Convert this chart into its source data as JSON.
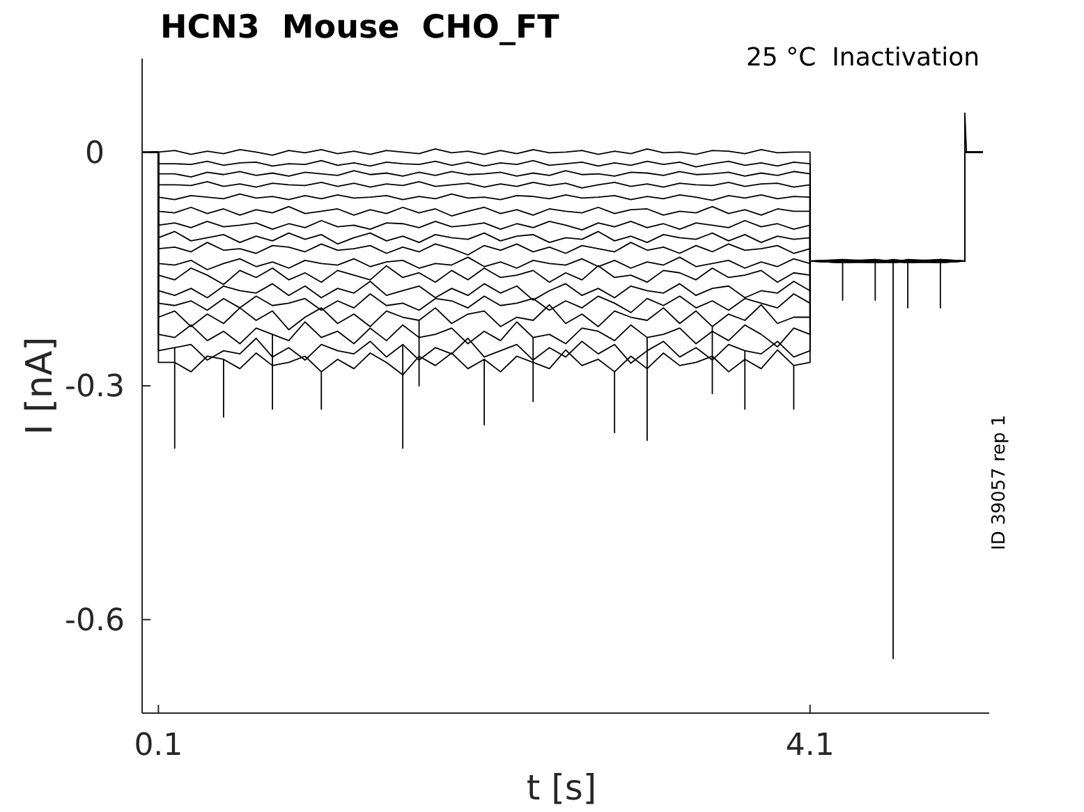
{
  "chart_data": {
    "type": "line",
    "title": "HCN3  Mouse  CHO_FT",
    "subtitle": "25 °C  Inactivation",
    "xlabel": "t [s]",
    "ylabel": "I [nA]",
    "annotations": [
      "ID 39057 rep 1"
    ],
    "xlim": [
      0,
      5.2
    ],
    "ylim": [
      -0.72,
      0.12
    ],
    "xticks": [
      0.1,
      4.1
    ],
    "yticks": [
      0,
      -0.3,
      -0.6
    ],
    "x": [
      0,
      0.1,
      0.1,
      0.2,
      0.3,
      0.4,
      0.5,
      0.6,
      0.7,
      0.8,
      0.9,
      1.0,
      1.1,
      1.2,
      1.3,
      1.4,
      1.5,
      1.6,
      1.7,
      1.8,
      1.9,
      2.0,
      2.1,
      2.2,
      2.3,
      2.4,
      2.5,
      2.6,
      2.7,
      2.8,
      2.9,
      3.0,
      3.1,
      3.2,
      3.3,
      3.4,
      3.5,
      3.6,
      3.7,
      3.8,
      3.9,
      4.0,
      4.1,
      4.1,
      4.3,
      4.5,
      4.61,
      4.7,
      4.9,
      5.05,
      5.05,
      5.06,
      5.16
    ],
    "series": [
      {
        "color": "#000000",
        "values": [
          0,
          0,
          0,
          0.002,
          -0.003,
          0.001,
          -0.002,
          0.003,
          0,
          -0.004,
          0.002,
          -0.001,
          0.003,
          -0.002,
          0.001,
          -0.003,
          0.002,
          0,
          -0.002,
          0.004,
          -0.001,
          0.001,
          -0.003,
          0.002,
          -0.002,
          0.003,
          -0.001,
          0,
          0.002,
          -0.003,
          0.001,
          -0.002,
          0.004,
          -0.001,
          0,
          -0.003,
          0.002,
          0.001,
          -0.002,
          0.003,
          -0.001,
          0,
          0,
          -0.14,
          -0.139,
          -0.141,
          -0.14,
          -0.142,
          -0.138,
          -0.14,
          0,
          0,
          0
        ]
      },
      {
        "color": "#000000",
        "values": [
          0,
          0,
          -0.015,
          -0.015,
          -0.016,
          -0.012,
          -0.017,
          -0.014,
          -0.013,
          -0.018,
          -0.015,
          -0.016,
          -0.011,
          -0.017,
          -0.014,
          -0.018,
          -0.013,
          -0.015,
          -0.016,
          -0.012,
          -0.017,
          -0.013,
          -0.018,
          -0.014,
          -0.016,
          -0.011,
          -0.017,
          -0.015,
          -0.013,
          -0.018,
          -0.014,
          -0.017,
          -0.012,
          -0.016,
          -0.013,
          -0.019,
          -0.015,
          -0.012,
          -0.017,
          -0.014,
          -0.018,
          -0.013,
          -0.015,
          -0.14,
          -0.141,
          -0.138,
          -0.142,
          -0.14,
          -0.141,
          -0.14,
          0,
          0,
          0
        ]
      },
      {
        "color": "#000000",
        "values": [
          0,
          0,
          -0.028,
          -0.028,
          -0.032,
          -0.026,
          -0.029,
          -0.025,
          -0.03,
          -0.027,
          -0.031,
          -0.026,
          -0.028,
          -0.03,
          -0.024,
          -0.029,
          -0.027,
          -0.031,
          -0.026,
          -0.03,
          -0.025,
          -0.029,
          -0.028,
          -0.026,
          -0.031,
          -0.027,
          -0.03,
          -0.024,
          -0.029,
          -0.028,
          -0.031,
          -0.026,
          -0.027,
          -0.03,
          -0.025,
          -0.029,
          -0.028,
          -0.026,
          -0.031,
          -0.027,
          -0.03,
          -0.025,
          -0.028,
          -0.14,
          -0.14,
          -0.142,
          -0.139,
          -0.141,
          -0.14,
          -0.14,
          0,
          0,
          0
        ]
      },
      {
        "color": "#000000",
        "values": [
          0,
          0,
          -0.042,
          -0.042,
          -0.043,
          -0.038,
          -0.044,
          -0.041,
          -0.045,
          -0.04,
          -0.042,
          -0.043,
          -0.039,
          -0.044,
          -0.04,
          -0.045,
          -0.041,
          -0.043,
          -0.038,
          -0.044,
          -0.042,
          -0.04,
          -0.045,
          -0.041,
          -0.044,
          -0.039,
          -0.043,
          -0.04,
          -0.046,
          -0.042,
          -0.039,
          -0.044,
          -0.041,
          -0.045,
          -0.04,
          -0.042,
          -0.043,
          -0.039,
          -0.044,
          -0.041,
          -0.04,
          -0.045,
          -0.042,
          -0.14,
          -0.138,
          -0.14,
          -0.141,
          -0.139,
          -0.142,
          -0.14,
          0,
          0,
          0
        ]
      },
      {
        "color": "#000000",
        "values": [
          0,
          0,
          -0.058,
          -0.061,
          -0.056,
          -0.058,
          -0.06,
          -0.054,
          -0.059,
          -0.057,
          -0.061,
          -0.056,
          -0.06,
          -0.055,
          -0.059,
          -0.058,
          -0.056,
          -0.061,
          -0.057,
          -0.06,
          -0.054,
          -0.059,
          -0.058,
          -0.061,
          -0.056,
          -0.057,
          -0.06,
          -0.055,
          -0.059,
          -0.058,
          -0.056,
          -0.061,
          -0.057,
          -0.06,
          -0.055,
          -0.058,
          -0.062,
          -0.056,
          -0.059,
          -0.055,
          -0.06,
          -0.057,
          -0.058,
          -0.14,
          -0.142,
          -0.139,
          -0.14,
          -0.141,
          -0.139,
          -0.14,
          0,
          0,
          0
        ]
      },
      {
        "color": "#000000",
        "values": [
          0,
          0,
          -0.076,
          -0.078,
          -0.071,
          -0.079,
          -0.073,
          -0.081,
          -0.074,
          -0.078,
          -0.07,
          -0.079,
          -0.076,
          -0.073,
          -0.081,
          -0.074,
          -0.079,
          -0.071,
          -0.078,
          -0.073,
          -0.082,
          -0.076,
          -0.071,
          -0.079,
          -0.074,
          -0.081,
          -0.073,
          -0.076,
          -0.078,
          -0.071,
          -0.079,
          -0.074,
          -0.073,
          -0.081,
          -0.076,
          -0.078,
          -0.07,
          -0.079,
          -0.074,
          -0.081,
          -0.073,
          -0.076,
          -0.076,
          -0.14,
          -0.14,
          -0.141,
          -0.138,
          -0.14,
          -0.141,
          -0.14,
          0.05,
          0,
          0
        ]
      },
      {
        "color": "#000000",
        "values": [
          0,
          0,
          -0.094,
          -0.091,
          -0.097,
          -0.089,
          -0.096,
          -0.094,
          -0.091,
          -0.099,
          -0.092,
          -0.097,
          -0.088,
          -0.096,
          -0.094,
          -0.099,
          -0.091,
          -0.092,
          -0.097,
          -0.089,
          -0.096,
          -0.094,
          -0.091,
          -0.099,
          -0.092,
          -0.097,
          -0.089,
          -0.094,
          -0.1,
          -0.091,
          -0.096,
          -0.089,
          -0.097,
          -0.092,
          -0.099,
          -0.091,
          -0.094,
          -0.097,
          -0.088,
          -0.096,
          -0.092,
          -0.099,
          -0.094,
          -0.14,
          -0.139,
          -0.142,
          -0.141,
          -0.138,
          -0.14,
          -0.14,
          0,
          0,
          0
        ]
      },
      {
        "color": "#000000",
        "values": [
          0,
          0,
          -0.11,
          -0.102,
          -0.114,
          -0.11,
          -0.106,
          -0.116,
          -0.108,
          -0.114,
          -0.104,
          -0.112,
          -0.106,
          -0.118,
          -0.11,
          -0.104,
          -0.114,
          -0.108,
          -0.116,
          -0.106,
          -0.11,
          -0.112,
          -0.104,
          -0.114,
          -0.108,
          -0.106,
          -0.116,
          -0.11,
          -0.112,
          -0.102,
          -0.114,
          -0.108,
          -0.116,
          -0.106,
          -0.11,
          -0.112,
          -0.104,
          -0.114,
          -0.106,
          -0.116,
          -0.108,
          -0.112,
          -0.11,
          -0.14,
          -0.141,
          -0.14,
          -0.139,
          -0.142,
          -0.141,
          -0.14,
          0,
          0,
          0
        ]
      },
      {
        "color": "#000000",
        "values": [
          0,
          0,
          -0.124,
          -0.122,
          -0.128,
          -0.116,
          -0.126,
          -0.124,
          -0.13,
          -0.12,
          -0.122,
          -0.128,
          -0.118,
          -0.126,
          -0.124,
          -0.12,
          -0.13,
          -0.122,
          -0.128,
          -0.118,
          -0.124,
          -0.132,
          -0.12,
          -0.126,
          -0.118,
          -0.128,
          -0.122,
          -0.13,
          -0.12,
          -0.124,
          -0.128,
          -0.116,
          -0.126,
          -0.122,
          -0.13,
          -0.12,
          -0.128,
          -0.118,
          -0.126,
          -0.124,
          -0.12,
          -0.13,
          -0.124,
          -0.14,
          -0.14,
          -0.139,
          -0.142,
          -0.14,
          -0.138,
          -0.14,
          0,
          0,
          0
        ]
      },
      {
        "color": "#000000",
        "values": [
          0,
          0,
          -0.143,
          -0.145,
          -0.139,
          -0.151,
          -0.143,
          -0.137,
          -0.147,
          -0.141,
          -0.149,
          -0.139,
          -0.143,
          -0.145,
          -0.137,
          -0.147,
          -0.141,
          -0.139,
          -0.149,
          -0.143,
          -0.145,
          -0.135,
          -0.147,
          -0.141,
          -0.149,
          -0.139,
          -0.143,
          -0.145,
          -0.137,
          -0.147,
          -0.139,
          -0.149,
          -0.141,
          -0.145,
          -0.135,
          -0.147,
          -0.143,
          -0.139,
          -0.149,
          -0.141,
          -0.147,
          -0.137,
          -0.143,
          -0.14,
          -0.142,
          -0.141,
          -0.14,
          -0.139,
          -0.14,
          -0.14,
          0,
          0,
          0
        ]
      },
      {
        "color": "#000000",
        "x": [
          0,
          0.1,
          0.1,
          0.2,
          0.3,
          0.4,
          0.5,
          0.6,
          0.7,
          0.8,
          0.9,
          1.0,
          1.1,
          1.2,
          1.3,
          1.4,
          1.5,
          1.6,
          1.7,
          1.8,
          1.9,
          2.0,
          2.1,
          2.2,
          2.3,
          2.4,
          2.5,
          2.6,
          2.7,
          2.8,
          2.9,
          3.0,
          3.1,
          3.2,
          3.3,
          3.4,
          3.5,
          3.6,
          3.7,
          3.8,
          3.9,
          4.0,
          4.1,
          4.1,
          4.3,
          4.3,
          4.3,
          4.5,
          4.61,
          4.7,
          4.9,
          5.05,
          5.05,
          5.06,
          5.16
        ],
        "values": [
          0,
          0,
          -0.158,
          -0.164,
          -0.149,
          -0.158,
          -0.17,
          -0.152,
          -0.161,
          -0.149,
          -0.164,
          -0.155,
          -0.167,
          -0.152,
          -0.158,
          -0.164,
          -0.146,
          -0.161,
          -0.155,
          -0.167,
          -0.152,
          -0.164,
          -0.149,
          -0.161,
          -0.158,
          -0.152,
          -0.167,
          -0.155,
          -0.164,
          -0.146,
          -0.161,
          -0.158,
          -0.167,
          -0.152,
          -0.155,
          -0.164,
          -0.149,
          -0.161,
          -0.158,
          -0.152,
          -0.167,
          -0.155,
          -0.158,
          -0.14,
          -0.14,
          -0.19,
          -0.14,
          -0.14,
          -0.141,
          -0.142,
          -0.139,
          -0.14,
          0,
          0,
          0
        ]
      },
      {
        "color": "#000000",
        "values": [
          0,
          0,
          -0.178,
          -0.184,
          -0.175,
          -0.187,
          -0.172,
          -0.178,
          -0.181,
          -0.169,
          -0.184,
          -0.172,
          -0.187,
          -0.175,
          -0.181,
          -0.166,
          -0.184,
          -0.178,
          -0.172,
          -0.187,
          -0.175,
          -0.184,
          -0.169,
          -0.181,
          -0.172,
          -0.19,
          -0.178,
          -0.169,
          -0.184,
          -0.175,
          -0.187,
          -0.172,
          -0.178,
          -0.181,
          -0.169,
          -0.184,
          -0.175,
          -0.172,
          -0.187,
          -0.178,
          -0.181,
          -0.166,
          -0.178,
          -0.14,
          -0.14,
          -0.138,
          -0.14,
          -0.141,
          -0.142,
          -0.14,
          0,
          0,
          0
        ]
      },
      {
        "color": "#000000",
        "x": [
          0,
          0.1,
          0.1,
          0.2,
          0.3,
          0.4,
          0.5,
          0.6,
          0.7,
          0.8,
          0.9,
          1.0,
          1.1,
          1.2,
          1.3,
          1.4,
          1.5,
          1.6,
          1.7,
          1.8,
          1.9,
          2.0,
          2.1,
          2.2,
          2.3,
          2.4,
          2.5,
          2.6,
          2.7,
          2.8,
          2.9,
          3.0,
          3.1,
          3.2,
          3.3,
          3.4,
          3.5,
          3.6,
          3.7,
          3.8,
          3.9,
          4.0,
          4.1,
          4.1,
          4.3,
          4.5,
          4.61,
          4.7,
          4.7,
          4.7,
          4.9,
          5.05,
          5.05,
          5.06,
          5.16
        ],
        "values": [
          0,
          0,
          -0.194,
          -0.197,
          -0.191,
          -0.203,
          -0.188,
          -0.2,
          -0.185,
          -0.197,
          -0.194,
          -0.188,
          -0.203,
          -0.191,
          -0.2,
          -0.182,
          -0.197,
          -0.194,
          -0.203,
          -0.188,
          -0.191,
          -0.2,
          -0.185,
          -0.197,
          -0.194,
          -0.188,
          -0.203,
          -0.191,
          -0.2,
          -0.185,
          -0.194,
          -0.206,
          -0.188,
          -0.197,
          -0.185,
          -0.2,
          -0.191,
          -0.203,
          -0.188,
          -0.194,
          -0.2,
          -0.182,
          -0.194,
          -0.14,
          -0.141,
          -0.142,
          -0.139,
          -0.14,
          -0.2,
          -0.14,
          -0.14,
          -0.14,
          0,
          0,
          0
        ]
      },
      {
        "color": "#000000",
        "x": [
          0,
          0.1,
          0.1,
          0.2,
          0.3,
          0.4,
          0.5,
          0.6,
          0.7,
          0.8,
          0.9,
          1.0,
          1.1,
          1.2,
          1.3,
          1.4,
          1.5,
          1.6,
          1.7,
          1.7,
          1.7,
          1.8,
          1.9,
          2.0,
          2.1,
          2.2,
          2.3,
          2.4,
          2.5,
          2.6,
          2.7,
          2.8,
          2.9,
          3.0,
          3.1,
          3.2,
          3.3,
          3.4,
          3.5,
          3.5,
          3.5,
          3.6,
          3.7,
          3.8,
          3.9,
          4.0,
          4.1,
          4.1,
          4.3,
          4.5,
          4.61,
          4.7,
          4.9,
          5.05,
          5.05,
          5.06,
          5.16
        ],
        "values": [
          0,
          0,
          -0.212,
          -0.204,
          -0.224,
          -0.208,
          -0.22,
          -0.2,
          -0.216,
          -0.204,
          -0.228,
          -0.212,
          -0.2,
          -0.22,
          -0.208,
          -0.224,
          -0.204,
          -0.212,
          -0.216,
          -0.3,
          -0.216,
          -0.2,
          -0.22,
          -0.208,
          -0.204,
          -0.224,
          -0.212,
          -0.216,
          -0.196,
          -0.22,
          -0.208,
          -0.224,
          -0.204,
          -0.212,
          -0.216,
          -0.2,
          -0.22,
          -0.204,
          -0.224,
          -0.31,
          -0.224,
          -0.208,
          -0.216,
          -0.196,
          -0.22,
          -0.212,
          -0.212,
          -0.14,
          -0.139,
          -0.14,
          -0.141,
          -0.14,
          -0.139,
          -0.14,
          0,
          0,
          0
        ]
      },
      {
        "color": "#000000",
        "x": [
          0,
          0.1,
          0.1,
          0.2,
          0.3,
          0.4,
          0.5,
          0.6,
          0.7,
          0.8,
          0.8,
          0.8,
          0.9,
          1.0,
          1.1,
          1.2,
          1.3,
          1.4,
          1.5,
          1.6,
          1.7,
          1.8,
          1.9,
          2.0,
          2.1,
          2.2,
          2.3,
          2.4,
          2.4,
          2.4,
          2.5,
          2.6,
          2.7,
          2.8,
          2.9,
          3.0,
          3.1,
          3.1,
          3.1,
          3.2,
          3.3,
          3.4,
          3.5,
          3.6,
          3.7,
          3.8,
          3.9,
          4.0,
          4.1,
          4.1,
          4.3,
          4.5,
          4.61,
          4.7,
          4.9,
          5.05,
          5.05,
          5.06,
          5.16
        ],
        "values": [
          0,
          0,
          -0.234,
          -0.238,
          -0.222,
          -0.242,
          -0.23,
          -0.246,
          -0.226,
          -0.234,
          -0.33,
          -0.234,
          -0.242,
          -0.218,
          -0.238,
          -0.23,
          -0.246,
          -0.226,
          -0.242,
          -0.222,
          -0.238,
          -0.234,
          -0.226,
          -0.246,
          -0.23,
          -0.242,
          -0.218,
          -0.238,
          -0.32,
          -0.238,
          -0.234,
          -0.246,
          -0.226,
          -0.23,
          -0.242,
          -0.222,
          -0.238,
          -0.37,
          -0.238,
          -0.234,
          -0.226,
          -0.246,
          -0.23,
          -0.242,
          -0.222,
          -0.234,
          -0.25,
          -0.226,
          -0.234,
          -0.14,
          -0.141,
          -0.141,
          -0.142,
          -0.139,
          -0.14,
          -0.14,
          0,
          0,
          0
        ]
      },
      {
        "color": "#000000",
        "x": [
          0,
          0.1,
          0.1,
          0.2,
          0.2,
          0.2,
          0.3,
          0.4,
          0.5,
          0.6,
          0.7,
          0.8,
          0.9,
          1.0,
          1.1,
          1.2,
          1.3,
          1.4,
          1.5,
          1.6,
          1.6,
          1.6,
          1.7,
          1.8,
          1.9,
          2.0,
          2.1,
          2.2,
          2.3,
          2.4,
          2.5,
          2.6,
          2.7,
          2.8,
          2.9,
          3.0,
          3.1,
          3.2,
          3.3,
          3.4,
          3.5,
          3.6,
          3.7,
          3.7,
          3.7,
          3.8,
          3.9,
          4.0,
          4.1,
          4.1,
          4.3,
          4.5,
          4.5,
          4.5,
          4.61,
          4.7,
          4.9,
          4.9,
          4.9,
          5.05,
          5.05,
          5.06,
          5.16
        ],
        "values": [
          0,
          0,
          -0.255,
          -0.251,
          -0.38,
          -0.251,
          -0.247,
          -0.267,
          -0.255,
          -0.259,
          -0.239,
          -0.263,
          -0.251,
          -0.267,
          -0.247,
          -0.255,
          -0.259,
          -0.243,
          -0.263,
          -0.247,
          -0.38,
          -0.247,
          -0.267,
          -0.251,
          -0.259,
          -0.239,
          -0.263,
          -0.255,
          -0.247,
          -0.267,
          -0.251,
          -0.263,
          -0.243,
          -0.259,
          -0.247,
          -0.271,
          -0.255,
          -0.243,
          -0.263,
          -0.251,
          -0.267,
          -0.247,
          -0.255,
          -0.33,
          -0.255,
          -0.259,
          -0.243,
          -0.263,
          -0.255,
          -0.14,
          -0.14,
          -0.14,
          -0.19,
          -0.14,
          -0.14,
          -0.141,
          -0.14,
          -0.2,
          -0.14,
          -0.14,
          0,
          0,
          0
        ]
      },
      {
        "color": "#000000",
        "x": [
          0,
          0.1,
          0.1,
          0.2,
          0.3,
          0.4,
          0.5,
          0.5,
          0.5,
          0.6,
          0.7,
          0.8,
          0.9,
          1.0,
          1.1,
          1.1,
          1.1,
          1.2,
          1.3,
          1.4,
          1.5,
          1.6,
          1.7,
          1.8,
          1.9,
          2.0,
          2.1,
          2.1,
          2.1,
          2.2,
          2.3,
          2.4,
          2.5,
          2.6,
          2.7,
          2.8,
          2.9,
          2.9,
          2.9,
          3.0,
          3.1,
          3.2,
          3.3,
          3.4,
          3.5,
          3.6,
          3.7,
          3.8,
          3.9,
          4.0,
          4.0,
          4.0,
          4.1,
          4.1,
          4.3,
          4.5,
          4.61,
          4.61,
          4.61,
          4.7,
          4.9,
          5.05,
          5.05,
          5.06,
          5.16
        ],
        "values": [
          0,
          0,
          -0.27,
          -0.27,
          -0.282,
          -0.262,
          -0.266,
          -0.34,
          -0.266,
          -0.278,
          -0.258,
          -0.274,
          -0.27,
          -0.262,
          -0.282,
          -0.33,
          -0.282,
          -0.266,
          -0.278,
          -0.258,
          -0.27,
          -0.286,
          -0.262,
          -0.274,
          -0.258,
          -0.278,
          -0.266,
          -0.35,
          -0.266,
          -0.282,
          -0.262,
          -0.27,
          -0.278,
          -0.254,
          -0.274,
          -0.266,
          -0.282,
          -0.36,
          -0.282,
          -0.262,
          -0.278,
          -0.258,
          -0.274,
          -0.27,
          -0.262,
          -0.282,
          -0.266,
          -0.278,
          -0.254,
          -0.274,
          -0.33,
          -0.274,
          -0.27,
          -0.14,
          -0.142,
          -0.14,
          -0.14,
          -0.65,
          -0.14,
          -0.14,
          -0.141,
          -0.14,
          0,
          0,
          0
        ]
      }
    ]
  }
}
